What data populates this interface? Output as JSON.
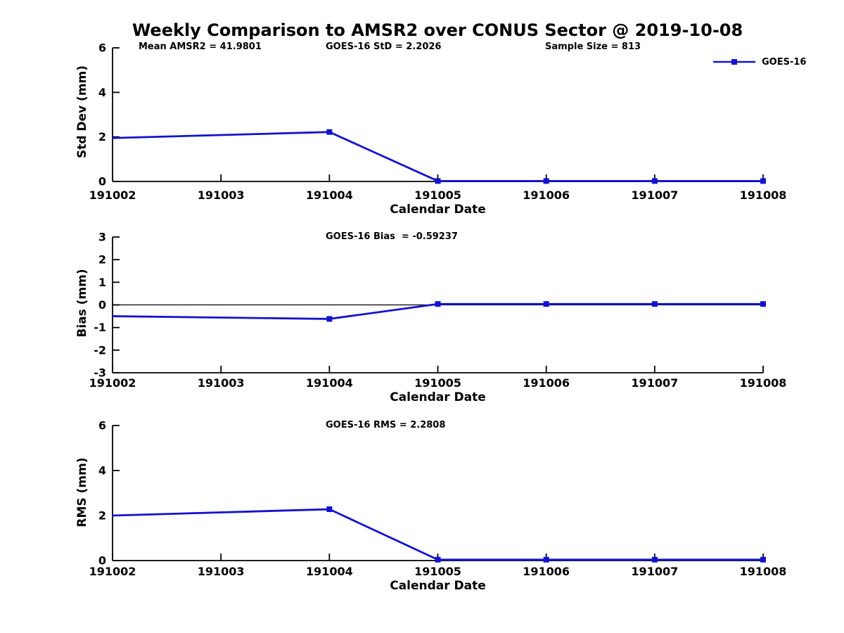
{
  "title": "Weekly Comparison to AMSR2 over CONUS Sector @ 2019-10-08",
  "legend": {
    "label": "GOES-16"
  },
  "colors": {
    "series": "#1212cf",
    "axis": "#000000",
    "text": "#000000",
    "background": "#ffffff"
  },
  "chart_data": [
    {
      "type": "line",
      "panel": "std-dev",
      "annotations": [
        "Mean AMSR2 = 41.9801",
        "GOES-16 StD = 2.2026",
        "Sample Size = 813"
      ],
      "ylabel": "Std Dev (mm)",
      "xlabel": "Calendar Date",
      "ylim": [
        0,
        6
      ],
      "yticks": [
        0,
        2,
        4,
        6
      ],
      "xlim": [
        191002,
        191008
      ],
      "xticks": [
        "191002",
        "191003",
        "191004",
        "191005",
        "191006",
        "191007",
        "191008"
      ],
      "grid": false,
      "zero_line": false,
      "legend_position": "top-right",
      "series": [
        {
          "name": "GOES-16",
          "x": [
            191002,
            191004,
            191005,
            191006,
            191007,
            191008
          ],
          "y": [
            1.95,
            2.22,
            0.02,
            0.02,
            0.02,
            0.02
          ],
          "markers": [
            false,
            true,
            true,
            true,
            true,
            true
          ]
        }
      ]
    },
    {
      "type": "line",
      "panel": "bias",
      "annotations": [
        "GOES-16 Bias  = -0.59237"
      ],
      "ylabel": "Bias (mm)",
      "xlabel": "Calendar Date",
      "ylim": [
        -3,
        3
      ],
      "yticks": [
        3,
        2,
        1,
        0,
        -1,
        -2,
        -3
      ],
      "xlim": [
        191002,
        191008
      ],
      "xticks": [
        "191002",
        "191003",
        "191004",
        "191005",
        "191006",
        "191007",
        "191008"
      ],
      "grid": false,
      "zero_line": true,
      "series": [
        {
          "name": "GOES-16",
          "x": [
            191002,
            191004,
            191005,
            191006,
            191007,
            191008
          ],
          "y": [
            -0.5,
            -0.62,
            0.04,
            0.04,
            0.04,
            0.04
          ],
          "markers": [
            false,
            true,
            true,
            true,
            true,
            true
          ]
        }
      ]
    },
    {
      "type": "line",
      "panel": "rms",
      "annotations": [
        "GOES-16 RMS = 2.2808"
      ],
      "ylabel": "RMS (mm)",
      "xlabel": "Calendar Date",
      "ylim": [
        0,
        6
      ],
      "yticks": [
        0,
        2,
        4,
        6
      ],
      "xlim": [
        191002,
        191008
      ],
      "xticks": [
        "191002",
        "191003",
        "191004",
        "191005",
        "191006",
        "191007",
        "191008"
      ],
      "grid": false,
      "zero_line": false,
      "series": [
        {
          "name": "GOES-16",
          "x": [
            191002,
            191004,
            191005,
            191006,
            191007,
            191008
          ],
          "y": [
            2.0,
            2.28,
            0.04,
            0.04,
            0.04,
            0.04
          ],
          "markers": [
            false,
            true,
            true,
            true,
            true,
            true
          ]
        }
      ]
    }
  ]
}
